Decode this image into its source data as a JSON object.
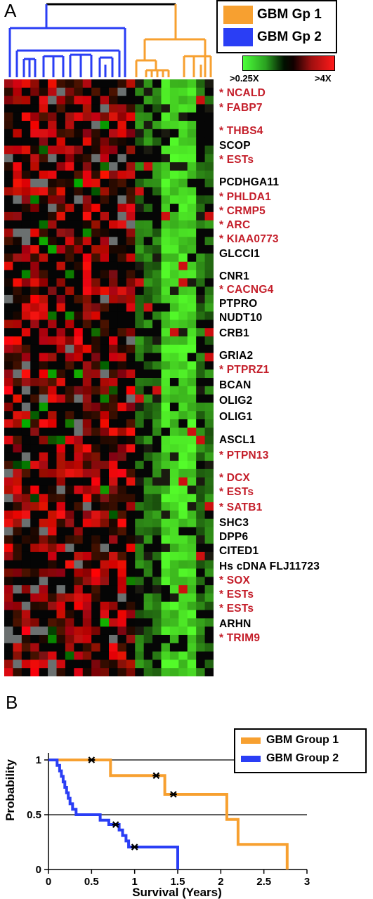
{
  "panelA": {
    "label": "A",
    "legend": {
      "items": [
        {
          "label": "GBM Gp 1",
          "color": "#f7a030"
        },
        {
          "label": "GBM Gp 2",
          "color": "#2a3ef5"
        }
      ]
    },
    "colorScale": {
      "low": ">0.25X",
      "high": ">4X"
    },
    "genes": [
      {
        "name": "* NCALD",
        "color": "#c41e2a"
      },
      {
        "name": "* FABP7",
        "color": "#c41e2a"
      },
      {
        "name": "* THBS4",
        "color": "#c41e2a"
      },
      {
        "name": "SCOP",
        "color": "#000000"
      },
      {
        "name": "* ESTs",
        "color": "#c41e2a"
      },
      {
        "name": "PCDHGA11",
        "color": "#000000"
      },
      {
        "name": "* PHLDA1",
        "color": "#c41e2a"
      },
      {
        "name": "* CRMP5",
        "color": "#c41e2a"
      },
      {
        "name": "* ARC",
        "color": "#c41e2a"
      },
      {
        "name": "* KIAA0773",
        "color": "#c41e2a"
      },
      {
        "name": "GLCCI1",
        "color": "#000000"
      },
      {
        "name": "CNR1",
        "color": "#000000"
      },
      {
        "name": "* CACNG4",
        "color": "#c41e2a"
      },
      {
        "name": "PTPRO",
        "color": "#000000"
      },
      {
        "name": "NUDT10",
        "color": "#000000"
      },
      {
        "name": "CRB1",
        "color": "#000000"
      },
      {
        "name": "GRIA2",
        "color": "#000000"
      },
      {
        "name": "* PTPRZ1",
        "color": "#c41e2a"
      },
      {
        "name": "BCAN",
        "color": "#000000"
      },
      {
        "name": "OLIG2",
        "color": "#000000"
      },
      {
        "name": "OLIG1",
        "color": "#000000"
      },
      {
        "name": "ASCL1",
        "color": "#000000"
      },
      {
        "name": "* PTPN13",
        "color": "#c41e2a"
      },
      {
        "name": "* DCX",
        "color": "#c41e2a"
      },
      {
        "name": "* ESTs",
        "color": "#c41e2a"
      },
      {
        "name": "* SATB1",
        "color": "#c41e2a"
      },
      {
        "name": "SHC3",
        "color": "#000000"
      },
      {
        "name": "DPP6",
        "color": "#000000"
      },
      {
        "name": "CITED1",
        "color": "#000000"
      },
      {
        "name": "Hs cDNA FLJ11723",
        "color": "#000000"
      },
      {
        "name": "* SOX",
        "color": "#c41e2a"
      },
      {
        "name": "* ESTs",
        "color": "#c41e2a"
      },
      {
        "name": "* ESTs",
        "color": "#c41e2a"
      },
      {
        "name": "ARHN",
        "color": "#000000"
      },
      {
        "name": "* TRIM9",
        "color": "#c41e2a"
      }
    ]
  },
  "panelB": {
    "label": "B",
    "chart_data": {
      "type": "line",
      "xlabel": "Survival (Years)",
      "ylabel": "Probability",
      "xlim": [
        0,
        3
      ],
      "ylim": [
        0,
        1
      ],
      "xticks": [
        "0",
        "0.5",
        "1",
        "1.5",
        "2",
        "2.5",
        "3"
      ],
      "yticks": [
        "0",
        "0.5",
        "1"
      ],
      "gridlines_y": [
        0.5,
        1
      ],
      "legend_position": "top-right",
      "series": [
        {
          "name": "GBM Group 1",
          "color": "#f7a030",
          "steps": [
            [
              0,
              1
            ],
            [
              0.72,
              1
            ],
            [
              0.72,
              0.857
            ],
            [
              1.35,
              0.857
            ],
            [
              1.35,
              0.686
            ],
            [
              2.07,
              0.686
            ],
            [
              2.07,
              0.457
            ],
            [
              2.2,
              0.457
            ],
            [
              2.2,
              0.229
            ],
            [
              2.77,
              0.229
            ],
            [
              2.77,
              0
            ]
          ],
          "censored": [
            [
              0.5,
              1
            ],
            [
              1.25,
              0.857
            ],
            [
              1.45,
              0.686
            ]
          ]
        },
        {
          "name": "GBM Group 2",
          "color": "#2a3ef5",
          "steps": [
            [
              0,
              1
            ],
            [
              0.1,
              1
            ],
            [
              0.1,
              0.95
            ],
            [
              0.13,
              0.95
            ],
            [
              0.13,
              0.9
            ],
            [
              0.15,
              0.9
            ],
            [
              0.15,
              0.85
            ],
            [
              0.17,
              0.85
            ],
            [
              0.17,
              0.8
            ],
            [
              0.19,
              0.8
            ],
            [
              0.19,
              0.75
            ],
            [
              0.21,
              0.75
            ],
            [
              0.21,
              0.7
            ],
            [
              0.23,
              0.7
            ],
            [
              0.23,
              0.65
            ],
            [
              0.25,
              0.65
            ],
            [
              0.25,
              0.6
            ],
            [
              0.28,
              0.6
            ],
            [
              0.28,
              0.55
            ],
            [
              0.32,
              0.55
            ],
            [
              0.32,
              0.5
            ],
            [
              0.6,
              0.5
            ],
            [
              0.6,
              0.45
            ],
            [
              0.7,
              0.45
            ],
            [
              0.7,
              0.41
            ],
            [
              0.82,
              0.41
            ],
            [
              0.82,
              0.36
            ],
            [
              0.86,
              0.36
            ],
            [
              0.86,
              0.31
            ],
            [
              0.9,
              0.31
            ],
            [
              0.9,
              0.26
            ],
            [
              0.93,
              0.26
            ],
            [
              0.93,
              0.205
            ],
            [
              1.5,
              0.205
            ],
            [
              1.5,
              0
            ]
          ],
          "censored": [
            [
              0.78,
              0.41
            ],
            [
              1.0,
              0.205
            ]
          ]
        }
      ]
    }
  }
}
